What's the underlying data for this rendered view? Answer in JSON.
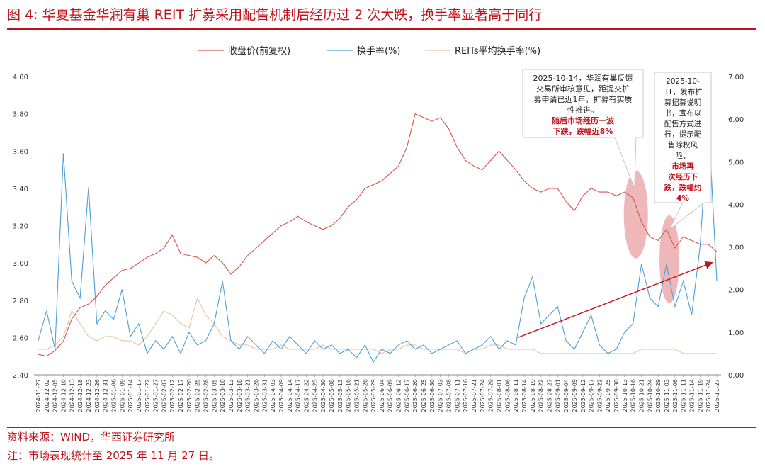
{
  "header": {
    "title": "图 4:  华夏基金华润有巢 REIT 扩募采用配售机制后经历过 2 次大跌，换手率显著高于同行"
  },
  "footer": {
    "source": "资料来源：WIND，华西证券研究所",
    "note": "注：市场表现统计至 2025 年 11 月 27 日。"
  },
  "colors": {
    "price": "#d9534a",
    "turnover": "#4e9fd6",
    "peer": "#e8c4a0",
    "accent": "#c0121a",
    "ellipse": "#e8a0a4",
    "grid": "#888888"
  },
  "chart_data": {
    "type": "line",
    "title": "",
    "legend": [
      "收盘价(前复权)",
      "换手率(%)",
      "REITs平均换手率(%)"
    ],
    "legend_position": "top-center",
    "x_tick_labels": [
      "2024-11-27",
      "2024-12-02",
      "2024-12-05",
      "2024-12-10",
      "2024-12-13",
      "2024-12-18",
      "2024-12-23",
      "2024-12-26",
      "2024-12-31",
      "2025-01-06",
      "2025-01-09",
      "2025-01-14",
      "2025-01-17",
      "2025-01-22",
      "2025-01-27",
      "2025-02-07",
      "2025-02-12",
      "2025-02-17",
      "2025-02-20",
      "2025-02-25",
      "2025-02-28",
      "2025-03-05",
      "2025-03-10",
      "2025-03-13",
      "2025-03-18",
      "2025-03-21",
      "2025-03-26",
      "2025-03-31",
      "2025-04-03",
      "2025-04-09",
      "2025-04-14",
      "2025-04-17",
      "2025-04-22",
      "2025-04-25",
      "2025-04-30",
      "2025-05-08",
      "2025-05-13",
      "2025-05-16",
      "2025-05-21",
      "2025-05-26",
      "2025-05-29",
      "2025-06-04",
      "2025-06-09",
      "2025-06-12",
      "2025-06-17",
      "2025-06-20",
      "2025-06-25",
      "2025-06-30",
      "2025-07-03",
      "2025-07-08",
      "2025-07-11",
      "2025-07-16",
      "2025-07-21",
      "2025-07-24",
      "2025-07-29",
      "2025-08-01",
      "2025-08-06",
      "2025-08-11",
      "2025-08-14",
      "2025-08-19",
      "2025-08-22",
      "2025-08-27",
      "2025-09-01",
      "2025-09-04",
      "2025-09-09",
      "2025-09-12",
      "2025-09-17",
      "2025-09-22",
      "2025-09-25",
      "2025-09-30",
      "2025-10-13",
      "2025-10-16",
      "2025-10-21",
      "2025-10-24",
      "2025-10-29",
      "2025-11-03",
      "2025-11-06",
      "2025-11-11",
      "2025-11-14",
      "2025-11-19",
      "2025-11-24",
      "2025-11-27"
    ],
    "y_left": {
      "ylim": [
        2.4,
        4.0
      ],
      "ticks": [
        "2.40",
        "2.60",
        "2.80",
        "3.00",
        "3.20",
        "3.40",
        "3.60",
        "3.80",
        "4.00"
      ]
    },
    "y_right": {
      "ylim": [
        0,
        7
      ],
      "ticks": [
        "0.00",
        "1.00",
        "2.00",
        "3.00",
        "4.00",
        "5.00",
        "6.00",
        "7.00"
      ]
    },
    "grid": false,
    "series": [
      {
        "name": "收盘价(前复权)",
        "axis": "left",
        "points": [
          [
            0,
            2.51
          ],
          [
            1,
            2.5
          ],
          [
            2,
            2.53
          ],
          [
            3,
            2.58
          ],
          [
            4,
            2.7
          ],
          [
            5,
            2.76
          ],
          [
            6,
            2.78
          ],
          [
            7,
            2.82
          ],
          [
            8,
            2.88
          ],
          [
            9,
            2.92
          ],
          [
            10,
            2.96
          ],
          [
            11,
            2.97
          ],
          [
            12,
            3.0
          ],
          [
            13,
            3.03
          ],
          [
            14,
            3.05
          ],
          [
            15,
            3.08
          ],
          [
            16,
            3.15
          ],
          [
            17,
            3.05
          ],
          [
            18,
            3.04
          ],
          [
            19,
            3.03
          ],
          [
            20,
            3.0
          ],
          [
            21,
            3.04
          ],
          [
            22,
            3.0
          ],
          [
            23,
            2.94
          ],
          [
            24,
            2.98
          ],
          [
            25,
            3.04
          ],
          [
            26,
            3.08
          ],
          [
            27,
            3.12
          ],
          [
            28,
            3.16
          ],
          [
            29,
            3.2
          ],
          [
            30,
            3.22
          ],
          [
            31,
            3.25
          ],
          [
            32,
            3.22
          ],
          [
            33,
            3.2
          ],
          [
            34,
            3.18
          ],
          [
            35,
            3.2
          ],
          [
            36,
            3.24
          ],
          [
            37,
            3.3
          ],
          [
            38,
            3.34
          ],
          [
            39,
            3.4
          ],
          [
            40,
            3.42
          ],
          [
            41,
            3.44
          ],
          [
            42,
            3.48
          ],
          [
            43,
            3.52
          ],
          [
            44,
            3.62
          ],
          [
            45,
            3.8
          ],
          [
            46,
            3.78
          ],
          [
            47,
            3.76
          ],
          [
            48,
            3.78
          ],
          [
            49,
            3.72
          ],
          [
            50,
            3.62
          ],
          [
            51,
            3.55
          ],
          [
            52,
            3.52
          ],
          [
            53,
            3.5
          ],
          [
            54,
            3.55
          ],
          [
            55,
            3.6
          ],
          [
            56,
            3.55
          ],
          [
            57,
            3.5
          ],
          [
            58,
            3.44
          ],
          [
            59,
            3.4
          ],
          [
            60,
            3.38
          ],
          [
            61,
            3.4
          ],
          [
            62,
            3.4
          ],
          [
            63,
            3.33
          ],
          [
            64,
            3.28
          ],
          [
            65,
            3.36
          ],
          [
            66,
            3.4
          ],
          [
            67,
            3.38
          ],
          [
            68,
            3.38
          ],
          [
            69,
            3.36
          ],
          [
            70,
            3.38
          ],
          [
            71,
            3.35
          ],
          [
            72,
            3.22
          ],
          [
            73,
            3.14
          ],
          [
            74,
            3.12
          ],
          [
            75,
            3.18
          ],
          [
            76,
            3.08
          ],
          [
            77,
            3.14
          ],
          [
            78,
            3.12
          ],
          [
            79,
            3.1
          ],
          [
            80,
            3.1
          ],
          [
            81,
            3.06
          ]
        ]
      },
      {
        "name": "换手率(%)",
        "axis": "right",
        "points": [
          [
            0,
            0.8
          ],
          [
            1,
            1.5
          ],
          [
            2,
            0.6
          ],
          [
            3,
            5.2
          ],
          [
            4,
            2.2
          ],
          [
            5,
            1.8
          ],
          [
            6,
            4.4
          ],
          [
            7,
            1.2
          ],
          [
            8,
            1.5
          ],
          [
            9,
            1.3
          ],
          [
            10,
            2.0
          ],
          [
            11,
            0.9
          ],
          [
            12,
            1.2
          ],
          [
            13,
            0.5
          ],
          [
            14,
            0.8
          ],
          [
            15,
            0.6
          ],
          [
            16,
            0.9
          ],
          [
            17,
            0.5
          ],
          [
            18,
            1.0
          ],
          [
            19,
            0.7
          ],
          [
            20,
            0.8
          ],
          [
            21,
            1.2
          ],
          [
            22,
            2.2
          ],
          [
            23,
            0.8
          ],
          [
            24,
            0.6
          ],
          [
            25,
            0.9
          ],
          [
            26,
            0.7
          ],
          [
            27,
            0.5
          ],
          [
            28,
            0.8
          ],
          [
            29,
            0.6
          ],
          [
            30,
            0.9
          ],
          [
            31,
            0.7
          ],
          [
            32,
            0.5
          ],
          [
            33,
            0.8
          ],
          [
            34,
            0.6
          ],
          [
            35,
            0.7
          ],
          [
            36,
            0.5
          ],
          [
            37,
            0.6
          ],
          [
            38,
            0.4
          ],
          [
            39,
            0.7
          ],
          [
            40,
            0.3
          ],
          [
            41,
            0.6
          ],
          [
            42,
            0.5
          ],
          [
            43,
            0.7
          ],
          [
            44,
            0.8
          ],
          [
            45,
            0.6
          ],
          [
            46,
            0.7
          ],
          [
            47,
            0.5
          ],
          [
            48,
            0.6
          ],
          [
            49,
            0.7
          ],
          [
            50,
            0.8
          ],
          [
            51,
            0.5
          ],
          [
            52,
            0.6
          ],
          [
            53,
            0.7
          ],
          [
            54,
            0.9
          ],
          [
            55,
            0.6
          ],
          [
            56,
            0.8
          ],
          [
            57,
            0.7
          ],
          [
            58,
            1.8
          ],
          [
            59,
            2.3
          ],
          [
            60,
            1.2
          ],
          [
            61,
            1.4
          ],
          [
            62,
            1.6
          ],
          [
            63,
            0.8
          ],
          [
            64,
            0.6
          ],
          [
            65,
            1.0
          ],
          [
            66,
            1.4
          ],
          [
            67,
            0.7
          ],
          [
            68,
            0.5
          ],
          [
            69,
            0.6
          ],
          [
            70,
            1.0
          ],
          [
            71,
            1.2
          ],
          [
            72,
            2.6
          ],
          [
            73,
            1.8
          ],
          [
            74,
            1.6
          ],
          [
            75,
            2.6
          ],
          [
            76,
            1.6
          ],
          [
            77,
            2.2
          ],
          [
            78,
            1.4
          ],
          [
            79,
            3.0
          ],
          [
            80,
            6.0
          ],
          [
            81,
            2.2
          ]
        ]
      },
      {
        "name": "REITs平均换手率(%)",
        "axis": "right",
        "points": [
          [
            0,
            0.6
          ],
          [
            1,
            0.6
          ],
          [
            2,
            0.7
          ],
          [
            3,
            0.9
          ],
          [
            4,
            1.5
          ],
          [
            5,
            1.2
          ],
          [
            6,
            0.9
          ],
          [
            7,
            0.8
          ],
          [
            8,
            0.9
          ],
          [
            9,
            0.9
          ],
          [
            10,
            0.8
          ],
          [
            11,
            0.8
          ],
          [
            12,
            0.7
          ],
          [
            13,
            0.9
          ],
          [
            14,
            1.2
          ],
          [
            15,
            1.5
          ],
          [
            16,
            1.4
          ],
          [
            17,
            1.2
          ],
          [
            18,
            1.1
          ],
          [
            19,
            1.8
          ],
          [
            20,
            1.4
          ],
          [
            21,
            1.2
          ],
          [
            22,
            0.9
          ],
          [
            23,
            0.8
          ],
          [
            24,
            0.7
          ],
          [
            25,
            0.7
          ],
          [
            26,
            0.6
          ],
          [
            27,
            0.6
          ],
          [
            28,
            0.6
          ],
          [
            29,
            0.7
          ],
          [
            30,
            0.6
          ],
          [
            31,
            0.6
          ],
          [
            32,
            0.6
          ],
          [
            33,
            0.6
          ],
          [
            34,
            0.7
          ],
          [
            35,
            0.6
          ],
          [
            36,
            0.6
          ],
          [
            37,
            0.6
          ],
          [
            38,
            0.6
          ],
          [
            39,
            0.6
          ],
          [
            40,
            0.6
          ],
          [
            41,
            0.5
          ],
          [
            42,
            0.6
          ],
          [
            43,
            0.6
          ],
          [
            44,
            0.7
          ],
          [
            45,
            0.7
          ],
          [
            46,
            0.6
          ],
          [
            47,
            0.6
          ],
          [
            48,
            0.6
          ],
          [
            49,
            0.6
          ],
          [
            50,
            0.6
          ],
          [
            51,
            0.5
          ],
          [
            52,
            0.6
          ],
          [
            53,
            0.6
          ],
          [
            54,
            0.7
          ],
          [
            55,
            0.7
          ],
          [
            56,
            0.6
          ],
          [
            57,
            0.6
          ],
          [
            58,
            0.6
          ],
          [
            59,
            0.6
          ],
          [
            60,
            0.5
          ],
          [
            61,
            0.5
          ],
          [
            62,
            0.5
          ],
          [
            63,
            0.5
          ],
          [
            64,
            0.5
          ],
          [
            65,
            0.5
          ],
          [
            66,
            0.5
          ],
          [
            67,
            0.5
          ],
          [
            68,
            0.5
          ],
          [
            69,
            0.5
          ],
          [
            70,
            0.5
          ],
          [
            71,
            0.5
          ],
          [
            72,
            0.6
          ],
          [
            73,
            0.6
          ],
          [
            74,
            0.6
          ],
          [
            75,
            0.6
          ],
          [
            76,
            0.6
          ],
          [
            77,
            0.5
          ],
          [
            78,
            0.5
          ],
          [
            79,
            0.5
          ],
          [
            80,
            0.5
          ],
          [
            81,
            0.5
          ]
        ]
      }
    ],
    "annotations": [
      {
        "id": "ann1",
        "lines": [
          "2025-10-14，华润有巢反馈",
          "交易所审核意见，距提交扩",
          "募申请已近1年，扩募有实质",
          "性推进。"
        ],
        "highlight": [
          "随后市场经历一波",
          "下跌，跌幅近8%"
        ]
      },
      {
        "id": "ann2",
        "lines": [
          "2025-10-",
          "31，发布扩",
          "募招募说明",
          "书，宣布以",
          "配售方式进",
          "行，提示配",
          "售除权风",
          "险，"
        ],
        "highlight": [
          "市场再",
          "次经历下",
          "跌，跌幅约",
          "4%"
        ]
      }
    ]
  }
}
